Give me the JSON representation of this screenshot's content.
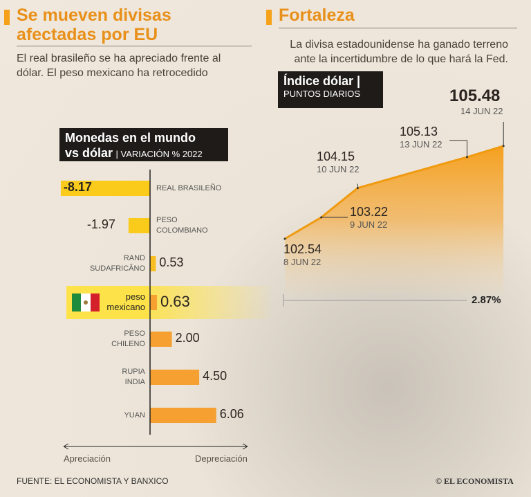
{
  "left": {
    "title_line1": "Se mueven divisas",
    "title_line2": "afectadas por EU",
    "subtitle_line1": "El real brasileño se ha apreciado frente al",
    "subtitle_line2": "dólar. El peso mexicano ha retrocedido"
  },
  "right": {
    "title": "Fortaleza",
    "subtitle_line1": "La divisa estadounidense ha ganado terreno",
    "subtitle_line2": "ante la incertidumbre de lo que hará la Fed."
  },
  "footer": {
    "source": "FUENTE: EL ECONOMISTA Y BANXICO",
    "logo": "EL ECONOMISTA"
  },
  "colors": {
    "accent": "#f5a21a",
    "yellow": "#fbcb1c",
    "orange": "#f5a030",
    "highlight": "#fde24a"
  },
  "chart_data": [
    {
      "type": "bar",
      "title_line1": "Monedas en el mundo",
      "title_line2": "vs dólar",
      "unit_label": "VARIACIÓN % 2022",
      "categories": [
        "REAL BRASILEÑO",
        "PESO COLOMBIANO",
        "RAND SUDAFRICÁNO",
        "peso mexicano",
        "PESO CHILENO",
        "RUPIA INDIA",
        "YUAN"
      ],
      "category_lines": [
        [
          "REAL BRASILEÑO"
        ],
        [
          "PESO",
          "COLOMBIANO"
        ],
        [
          "RAND",
          "SUDAFRICÂNO"
        ],
        [
          "peso",
          "mexicano"
        ],
        [
          "PESO",
          "CHILENO"
        ],
        [
          "RUPIA",
          "INDIA"
        ],
        [
          "YUAN"
        ]
      ],
      "values": [
        -8.17,
        -1.97,
        0.53,
        0.63,
        2.0,
        4.5,
        6.06
      ],
      "value_labels": [
        "-8.17",
        "-1.97",
        "0.53",
        "0.63",
        "2.00",
        "4.50",
        "6.06"
      ],
      "highlight": "peso mexicano",
      "axis_left": "Apreciación",
      "axis_right": "Depreciación"
    },
    {
      "type": "area",
      "title": "Índice dólar",
      "subtitle": "PUNTOS DIARIOS",
      "x": [
        "8 JUN 22",
        "9 JUN 22",
        "10 JUN 22",
        "13 JUN 22",
        "14 JUN 22"
      ],
      "x_day": [
        8,
        9,
        10,
        13,
        14
      ],
      "y": [
        102.54,
        103.22,
        104.15,
        105.13,
        105.48
      ],
      "y_labels": [
        "102.54",
        "103.22",
        "104.15",
        "105.13",
        "105.48"
      ],
      "change_label": "2.87%"
    }
  ]
}
